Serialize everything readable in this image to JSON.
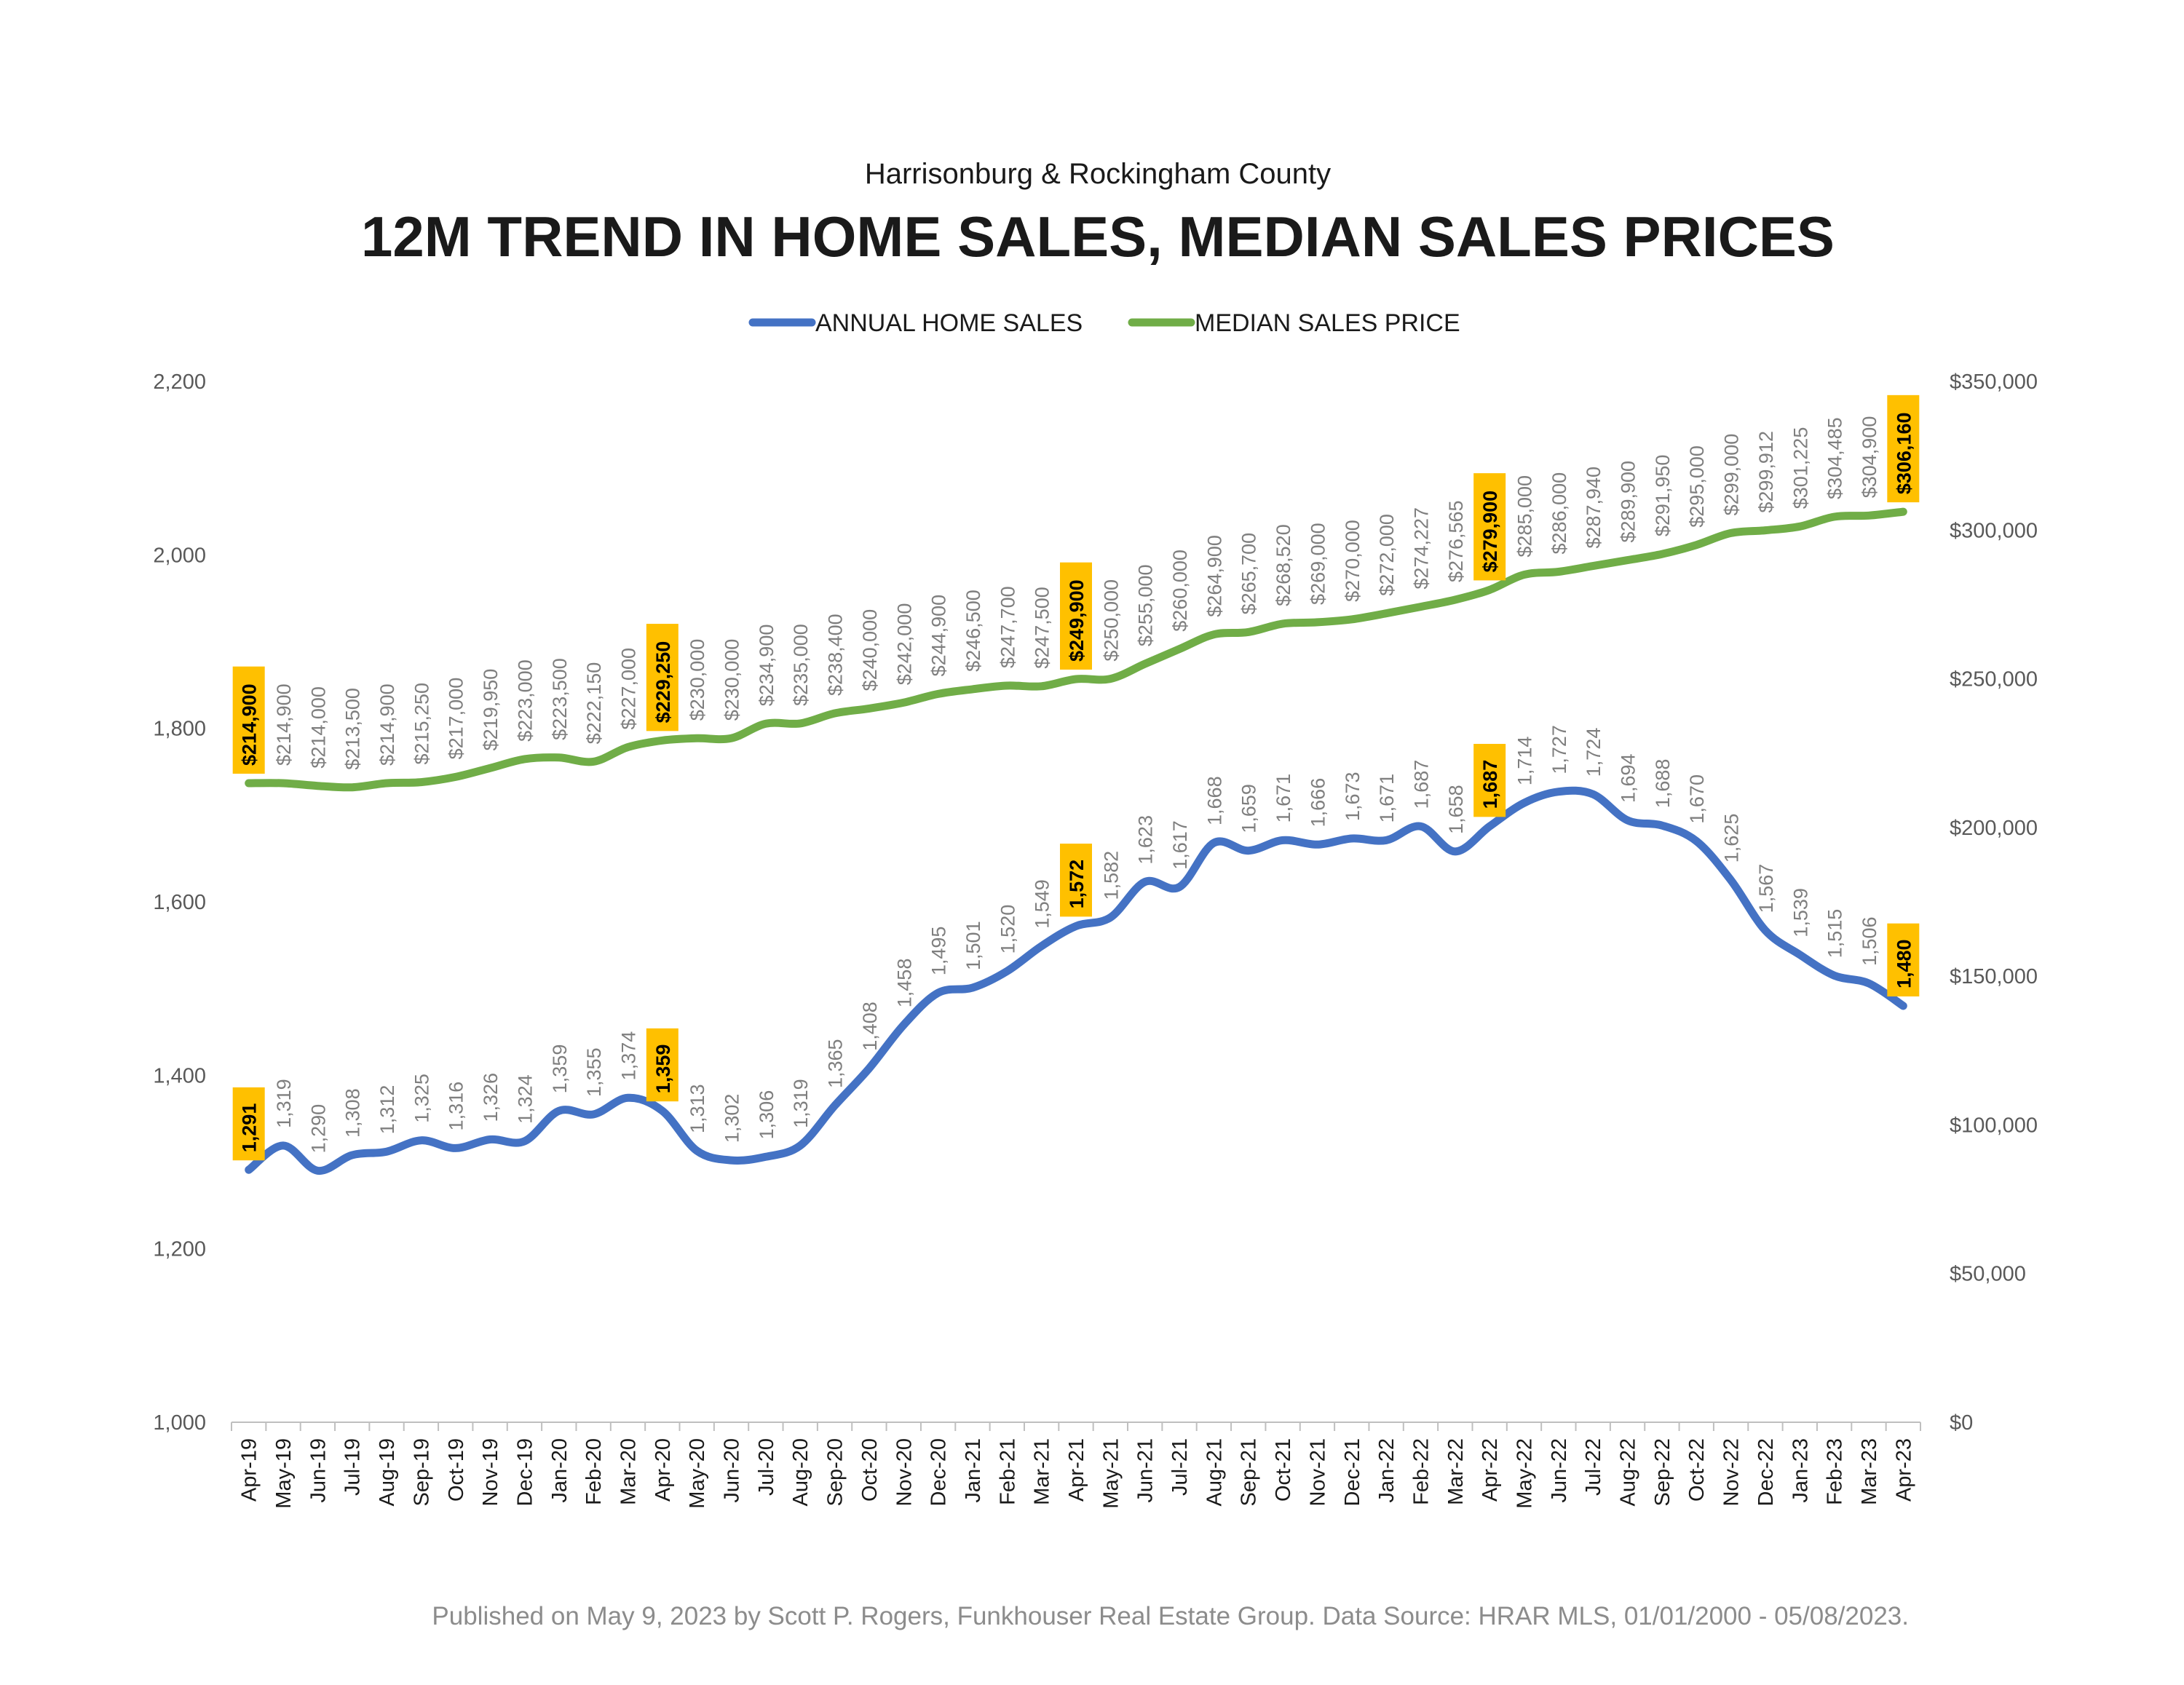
{
  "chart_data": {
    "type": "line",
    "subtitle": "Harrisonburg & Rockingham County",
    "title": "12M TREND IN HOME SALES, MEDIAN SALES PRICES",
    "footer": "Published on May 9, 2023 by Scott P. Rogers, Funkhouser Real Estate Group. Data Source: HRAR MLS, 01/01/2000 - 05/08/2023.",
    "legend_position": "top-center",
    "grid": false,
    "categories": [
      "Apr-19",
      "May-19",
      "Jun-19",
      "Jul-19",
      "Aug-19",
      "Sep-19",
      "Oct-19",
      "Nov-19",
      "Dec-19",
      "Jan-20",
      "Feb-20",
      "Mar-20",
      "Apr-20",
      "May-20",
      "Jun-20",
      "Jul-20",
      "Aug-20",
      "Sep-20",
      "Oct-20",
      "Nov-20",
      "Dec-20",
      "Jan-21",
      "Feb-21",
      "Mar-21",
      "Apr-21",
      "May-21",
      "Jun-21",
      "Jul-21",
      "Aug-21",
      "Sep-21",
      "Oct-21",
      "Nov-21",
      "Dec-21",
      "Jan-22",
      "Feb-22",
      "Mar-22",
      "Apr-22",
      "May-22",
      "Jun-22",
      "Jul-22",
      "Aug-22",
      "Sep-22",
      "Oct-22",
      "Nov-22",
      "Dec-22",
      "Jan-23",
      "Feb-23",
      "Mar-23",
      "Apr-23"
    ],
    "left_axis": {
      "ylim": [
        1000,
        2200
      ],
      "ticks": [
        1000,
        1200,
        1400,
        1600,
        1800,
        2000,
        2200
      ],
      "tick_labels": [
        "1,000",
        "1,200",
        "1,400",
        "1,600",
        "1,800",
        "2,000",
        "2,200"
      ]
    },
    "right_axis": {
      "ylim": [
        0,
        350000
      ],
      "ticks": [
        0,
        50000,
        100000,
        150000,
        200000,
        250000,
        300000,
        350000
      ],
      "tick_labels": [
        "$0",
        "$50,000",
        "$100,000",
        "$150,000",
        "$200,000",
        "$250,000",
        "$300,000",
        "$350,000"
      ]
    },
    "series": [
      {
        "name": "ANNUAL HOME SALES",
        "axis": "left",
        "color": "#4472c4",
        "values": [
          1291,
          1319,
          1290,
          1308,
          1312,
          1325,
          1316,
          1326,
          1324,
          1359,
          1355,
          1374,
          1359,
          1313,
          1302,
          1306,
          1319,
          1365,
          1408,
          1458,
          1495,
          1501,
          1520,
          1549,
          1572,
          1582,
          1623,
          1617,
          1668,
          1659,
          1671,
          1666,
          1673,
          1671,
          1687,
          1658,
          1687,
          1714,
          1727,
          1724,
          1694,
          1688,
          1670,
          1625,
          1567,
          1539,
          1515,
          1506,
          1480
        ],
        "labels": [
          "1,291",
          "1,319",
          "1,290",
          "1,308",
          "1,312",
          "1,325",
          "1,316",
          "1,326",
          "1,324",
          "1,359",
          "1,355",
          "1,374",
          "1,359",
          "1,313",
          "1,302",
          "1,306",
          "1,319",
          "1,365",
          "1,408",
          "1,458",
          "1,495",
          "1,501",
          "1,520",
          "1,549",
          "1,572",
          "1,582",
          "1,623",
          "1,617",
          "1,668",
          "1,659",
          "1,671",
          "1,666",
          "1,673",
          "1,671",
          "1,687",
          "1,658",
          "1,687",
          "1,714",
          "1,727",
          "1,724",
          "1,694",
          "1,688",
          "1,670",
          "1,625",
          "1,567",
          "1,539",
          "1,515",
          "1,506",
          "1,480"
        ]
      },
      {
        "name": "MEDIAN SALES PRICE",
        "axis": "right",
        "color": "#70ad47",
        "values": [
          214900,
          214900,
          214000,
          213500,
          214900,
          215250,
          217000,
          219950,
          223000,
          223500,
          222150,
          227000,
          229250,
          230000,
          230000,
          234900,
          235000,
          238400,
          240000,
          242000,
          244900,
          246500,
          247700,
          247500,
          249900,
          250000,
          255000,
          260000,
          264900,
          265700,
          268520,
          269000,
          270000,
          272000,
          274227,
          276565,
          279900,
          285000,
          286000,
          287940,
          289900,
          291950,
          295000,
          299000,
          299912,
          301225,
          304485,
          304900,
          306160
        ],
        "labels": [
          "$214,900",
          "$214,900",
          "$214,000",
          "$213,500",
          "$214,900",
          "$215,250",
          "$217,000",
          "$219,950",
          "$223,000",
          "$223,500",
          "$222,150",
          "$227,000",
          "$229,250",
          "$230,000",
          "$230,000",
          "$234,900",
          "$235,000",
          "$238,400",
          "$240,000",
          "$242,000",
          "$244,900",
          "$246,500",
          "$247,700",
          "$247,500",
          "$249,900",
          "$250,000",
          "$255,000",
          "$260,000",
          "$264,900",
          "$265,700",
          "$268,520",
          "$269,000",
          "$270,000",
          "$272,000",
          "$274,227",
          "$276,565",
          "$279,900",
          "$285,000",
          "$286,000",
          "$287,940",
          "$289,900",
          "$291,950",
          "$295,000",
          "$299,000",
          "$299,912",
          "$301,225",
          "$304,485",
          "$304,900",
          "$306,160"
        ]
      }
    ],
    "highlighted_points": [
      0,
      12,
      24,
      36,
      48
    ],
    "highlight_color": "#ffc000"
  }
}
